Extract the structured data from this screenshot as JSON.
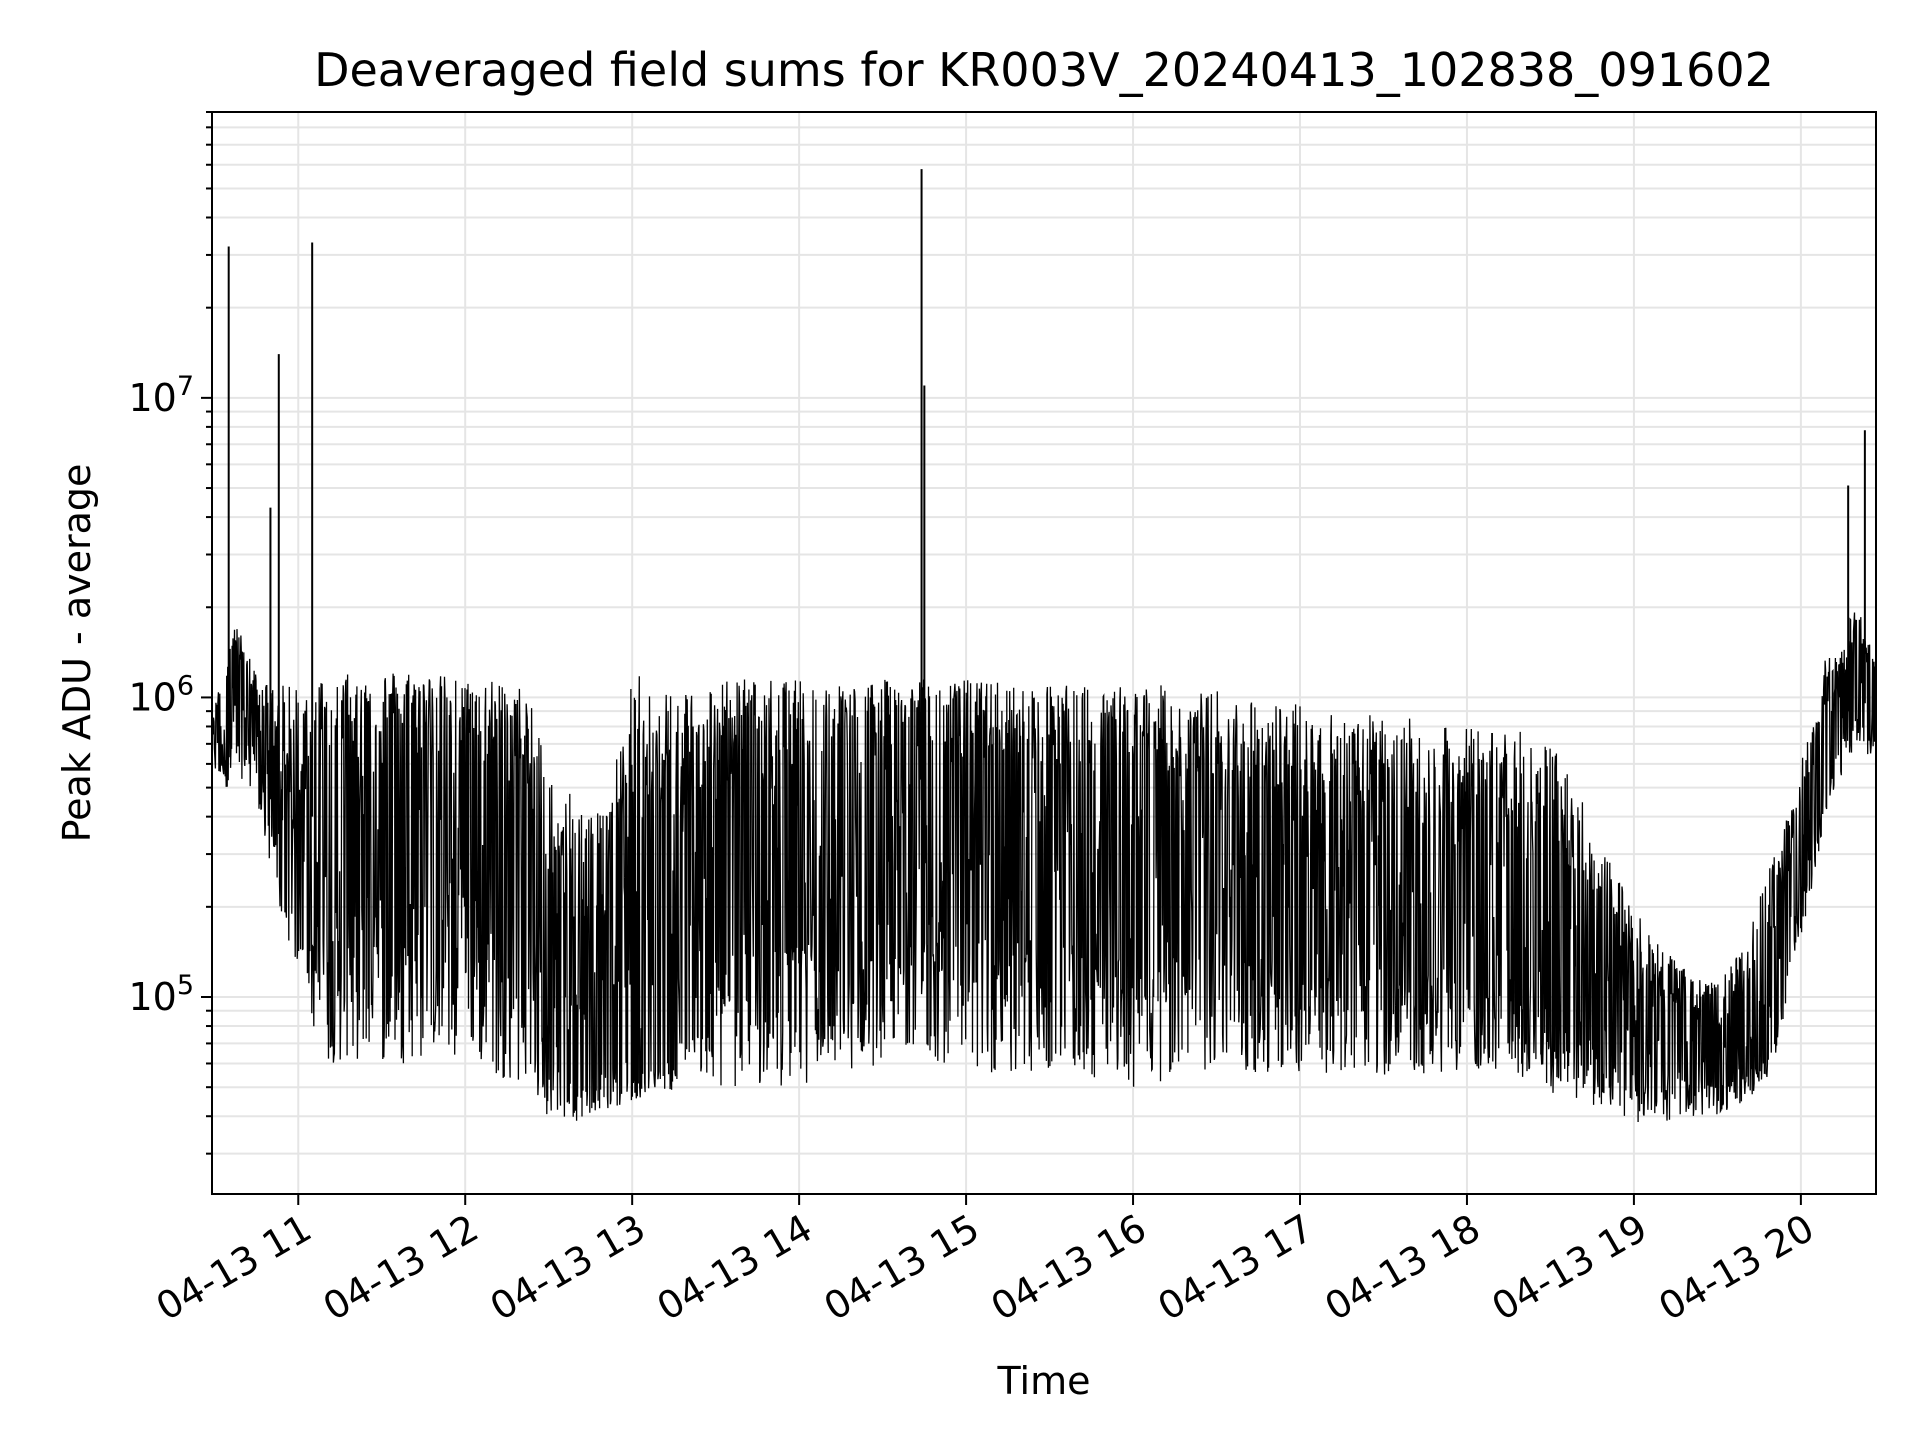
{
  "chart_data": {
    "type": "line",
    "title": "Deaveraged field sums for KR003V_20240413_102838_091602",
    "xlabel": "Time",
    "ylabel": "Peak ADU - average",
    "x_axis": {
      "kind": "datetime",
      "range": [
        "2024-04-13 10:29",
        "2024-04-13 20:27"
      ],
      "ticks": [
        {
          "value": "2024-04-13 11:00",
          "label": "04-13 11"
        },
        {
          "value": "2024-04-13 12:00",
          "label": "04-13 12"
        },
        {
          "value": "2024-04-13 13:00",
          "label": "04-13 13"
        },
        {
          "value": "2024-04-13 14:00",
          "label": "04-13 14"
        },
        {
          "value": "2024-04-13 15:00",
          "label": "04-13 15"
        },
        {
          "value": "2024-04-13 16:00",
          "label": "04-13 16"
        },
        {
          "value": "2024-04-13 17:00",
          "label": "04-13 17"
        },
        {
          "value": "2024-04-13 18:00",
          "label": "04-13 18"
        },
        {
          "value": "2024-04-13 19:00",
          "label": "04-13 19"
        },
        {
          "value": "2024-04-13 20:00",
          "label": "04-13 20"
        }
      ]
    },
    "y_axis": {
      "scale": "log",
      "range": [
        22000,
        90000000
      ],
      "ticks": [
        {
          "value": 100000,
          "base": "10",
          "exp": "5"
        },
        {
          "value": 1000000,
          "base": "10",
          "exp": "6"
        },
        {
          "value": 10000000,
          "base": "10",
          "exp": "7"
        }
      ]
    },
    "grid": true,
    "line_color": "#000000",
    "grid_color": "#e5e5e5",
    "series": [
      {
        "x": [
          "2024-04-13 10:29",
          "2024-04-13 10:33",
          "2024-04-13 10:37",
          "2024-04-13 10:41",
          "2024-04-13 10:45",
          "2024-04-13 10:49",
          "2024-04-13 10:53",
          "2024-04-13 10:57",
          "2024-04-13 11:01",
          "2024-04-13 11:05",
          "2024-04-13 11:10",
          "2024-04-13 11:20",
          "2024-04-13 11:30",
          "2024-04-13 11:40",
          "2024-04-13 11:50",
          "2024-04-13 12:00",
          "2024-04-13 12:10",
          "2024-04-13 12:20",
          "2024-04-13 12:30",
          "2024-04-13 12:40",
          "2024-04-13 12:50",
          "2024-04-13 13:00",
          "2024-04-13 13:10",
          "2024-04-13 13:20",
          "2024-04-13 13:30",
          "2024-04-13 13:40",
          "2024-04-13 13:50",
          "2024-04-13 14:00",
          "2024-04-13 14:10",
          "2024-04-13 14:20",
          "2024-04-13 14:30",
          "2024-04-13 14:40",
          "2024-04-13 14:50",
          "2024-04-13 15:00",
          "2024-04-13 15:10",
          "2024-04-13 15:20",
          "2024-04-13 15:30",
          "2024-04-13 15:40",
          "2024-04-13 15:50",
          "2024-04-13 16:00",
          "2024-04-13 16:10",
          "2024-04-13 16:20",
          "2024-04-13 16:30",
          "2024-04-13 16:40",
          "2024-04-13 16:50",
          "2024-04-13 17:00",
          "2024-04-13 17:10",
          "2024-04-13 17:20",
          "2024-04-13 17:30",
          "2024-04-13 17:40",
          "2024-04-13 17:50",
          "2024-04-13 18:00",
          "2024-04-13 18:10",
          "2024-04-13 18:20",
          "2024-04-13 18:30",
          "2024-04-13 18:40",
          "2024-04-13 18:50",
          "2024-04-13 19:00",
          "2024-04-13 19:10",
          "2024-04-13 19:20",
          "2024-04-13 19:30",
          "2024-04-13 19:40",
          "2024-04-13 19:50",
          "2024-04-13 20:00",
          "2024-04-13 20:10",
          "2024-04-13 20:20",
          "2024-04-13 20:27"
        ],
        "baseline": [
          650000,
          680000,
          900000,
          1000000,
          700000,
          500000,
          350000,
          200000,
          150000,
          400000,
          450000,
          400000,
          420000,
          450000,
          420000,
          400000,
          380000,
          300000,
          90000,
          60000,
          60000,
          65000,
          65000,
          100000,
          250000,
          300000,
          300000,
          300000,
          300000,
          320000,
          330000,
          600000,
          300000,
          300000,
          300000,
          300000,
          290000,
          280000,
          280000,
          280000,
          270000,
          260000,
          240000,
          230000,
          220000,
          210000,
          200000,
          190000,
          180000,
          180000,
          170000,
          170000,
          160000,
          140000,
          120000,
          100000,
          80000,
          65000,
          60000,
          60000,
          60000,
          60000,
          80000,
          300000,
          700000,
          1000000,
          900000
        ],
        "upper": [
          800000,
          1500000,
          1800000,
          1500000,
          1200000,
          1100000,
          1100000,
          1100000,
          1100000,
          1200000,
          1200000,
          1200000,
          1250000,
          1250000,
          1200000,
          1150000,
          1150000,
          1100000,
          700000,
          500000,
          400000,
          1200000,
          1200000,
          1150000,
          1150000,
          1150000,
          1150000,
          1150000,
          1150000,
          1150000,
          1150000,
          1150000,
          1150000,
          1150000,
          1150000,
          1100000,
          1100000,
          1100000,
          1100000,
          1100000,
          1100000,
          1050000,
          1050000,
          1000000,
          1000000,
          950000,
          900000,
          900000,
          850000,
          850000,
          800000,
          800000,
          800000,
          800000,
          700000,
          500000,
          300000,
          200000,
          150000,
          120000,
          110000,
          150000,
          300000,
          600000,
          1500000,
          2000000,
          1500000
        ],
        "lower": [
          600000,
          500000,
          500000,
          550000,
          450000,
          300000,
          200000,
          150000,
          120000,
          80000,
          60000,
          60000,
          60000,
          60000,
          60000,
          58000,
          55000,
          50000,
          40000,
          38000,
          42000,
          45000,
          48000,
          50000,
          50000,
          50000,
          50000,
          50000,
          55000,
          55000,
          60000,
          70000,
          60000,
          58000,
          55000,
          55000,
          55000,
          53000,
          52000,
          50000,
          52000,
          55000,
          55000,
          55000,
          55000,
          55000,
          55000,
          55000,
          55000,
          55000,
          55000,
          55000,
          55000,
          50000,
          48000,
          45000,
          42000,
          38000,
          38000,
          40000,
          40000,
          45000,
          55000,
          150000,
          450000,
          700000,
          600000
        ],
        "spikes": [
          {
            "x": "2024-04-13 10:35",
            "y": 32000000
          },
          {
            "x": "2024-04-13 10:50",
            "y": 4300000
          },
          {
            "x": "2024-04-13 10:53",
            "y": 14000000
          },
          {
            "x": "2024-04-13 11:05",
            "y": 33000000
          },
          {
            "x": "2024-04-13 14:44",
            "y": 58000000
          },
          {
            "x": "2024-04-13 14:45",
            "y": 11000000
          },
          {
            "x": "2024-04-13 20:17",
            "y": 5100000
          },
          {
            "x": "2024-04-13 20:23",
            "y": 7800000
          }
        ]
      }
    ]
  }
}
